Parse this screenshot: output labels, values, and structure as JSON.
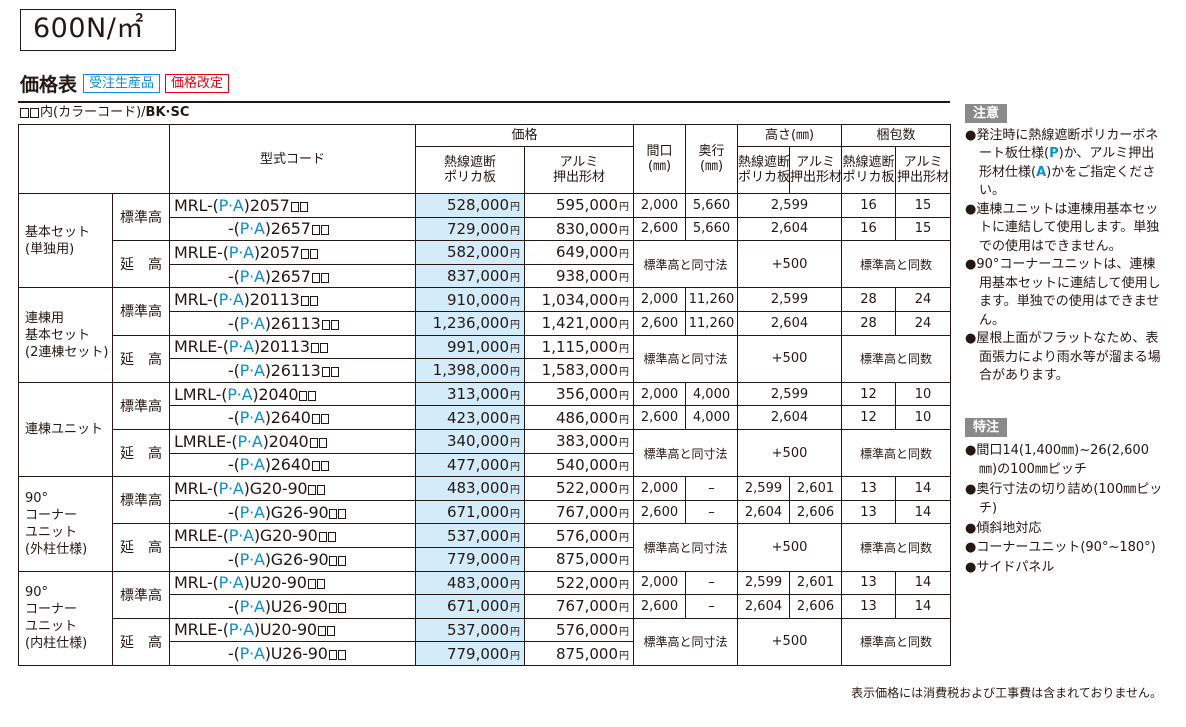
{
  "load": "600N/㎡",
  "title": "価格表",
  "tags": [
    "受注生産品",
    "価格改定"
  ],
  "color_note": {
    "prefix": "内(カラーコード)/",
    "code": "BK·SC"
  },
  "headers": {
    "model": "型式コード",
    "price": "価格",
    "price_poly": "熱線遮断\nポリカ板",
    "price_alumi": "アルミ\n押出形材",
    "width": "間口\n(㎜)",
    "depth": "奥行\n(㎜)",
    "height": "高さ(㎜)",
    "height_poly": "熱線遮断\nポリカ板",
    "height_alumi": "アルミ\n押出形材",
    "pack": "梱包数",
    "pack_poly": "熱線遮断\nポリカ板",
    "pack_alumi": "アルミ\n押出形材"
  },
  "groups": [
    {
      "category": "基本セット\n(単独用)",
      "std_label": "標準高",
      "ext_label": "延　高",
      "rows": [
        {
          "pre": "MRL-(",
          "pa": "P·A",
          "post": ")2057",
          "p1": "528,000",
          "p2": "595,000",
          "w": "2,000",
          "d": "5,660",
          "h1": "2,599",
          "h2": "",
          "k1": "16",
          "k2": "15"
        },
        {
          "pre": "-(",
          "pa": "P·A",
          "post": ")2657",
          "p1": "729,000",
          "p2": "830,000",
          "w": "2,600",
          "d": "5,660",
          "h1": "2,604",
          "h2": "",
          "k1": "16",
          "k2": "15"
        },
        {
          "pre": "MRLE-(",
          "pa": "P·A",
          "post": ")2057",
          "p1": "582,000",
          "p2": "649,000"
        },
        {
          "pre": "-(",
          "pa": "P·A",
          "post": ")2657",
          "p1": "837,000",
          "p2": "938,000"
        }
      ]
    },
    {
      "category": "連棟用\n基本セット\n(2連棟セット)",
      "std_label": "標準高",
      "ext_label": "延　高",
      "rows": [
        {
          "pre": "MRL-(",
          "pa": "P·A",
          "post": ")20113",
          "p1": "910,000",
          "p2": "1,034,000",
          "w": "2,000",
          "d": "11,260",
          "h1": "2,599",
          "h2": "",
          "k1": "28",
          "k2": "24"
        },
        {
          "pre": "-(",
          "pa": "P·A",
          "post": ")26113",
          "p1": "1,236,000",
          "p2": "1,421,000",
          "w": "2,600",
          "d": "11,260",
          "h1": "2,604",
          "h2": "",
          "k1": "28",
          "k2": "24"
        },
        {
          "pre": "MRLE-(",
          "pa": "P·A",
          "post": ")20113",
          "p1": "991,000",
          "p2": "1,115,000"
        },
        {
          "pre": "-(",
          "pa": "P·A",
          "post": ")26113",
          "p1": "1,398,000",
          "p2": "1,583,000"
        }
      ]
    },
    {
      "category": "連棟ユニット",
      "std_label": "標準高",
      "ext_label": "延　高",
      "rows": [
        {
          "pre": "LMRL-(",
          "pa": "P·A",
          "post": ")2040",
          "p1": "313,000",
          "p2": "356,000",
          "w": "2,000",
          "d": "4,000",
          "h1": "2,599",
          "h2": "",
          "k1": "12",
          "k2": "10"
        },
        {
          "pre": "-(",
          "pa": "P·A",
          "post": ")2640",
          "p1": "423,000",
          "p2": "486,000",
          "w": "2,600",
          "d": "4,000",
          "h1": "2,604",
          "h2": "",
          "k1": "12",
          "k2": "10"
        },
        {
          "pre": "LMRLE-(",
          "pa": "P·A",
          "post": ")2040",
          "p1": "340,000",
          "p2": "383,000"
        },
        {
          "pre": "-(",
          "pa": "P·A",
          "post": ")2640",
          "p1": "477,000",
          "p2": "540,000"
        }
      ]
    },
    {
      "category": "90°\nコーナー\nユニット\n(外柱仕様)",
      "std_label": "標準高",
      "ext_label": "延　高",
      "rows": [
        {
          "pre": "MRL-(",
          "pa": "P·A",
          "post": ")G20-90",
          "p1": "483,000",
          "p2": "522,000",
          "w": "2,000",
          "d": "–",
          "h1": "2,599",
          "h2": "2,601",
          "k1": "13",
          "k2": "14"
        },
        {
          "pre": "-(",
          "pa": "P·A",
          "post": ")G26-90",
          "p1": "671,000",
          "p2": "767,000",
          "w": "2,600",
          "d": "–",
          "h1": "2,604",
          "h2": "2,606",
          "k1": "13",
          "k2": "14"
        },
        {
          "pre": "MRLE-(",
          "pa": "P·A",
          "post": ")G20-90",
          "p1": "537,000",
          "p2": "576,000"
        },
        {
          "pre": "-(",
          "pa": "P·A",
          "post": ")G26-90",
          "p1": "779,000",
          "p2": "875,000"
        }
      ]
    },
    {
      "category": "90°\nコーナー\nユニット\n(内柱仕様)",
      "std_label": "標準高",
      "ext_label": "延　高",
      "rows": [
        {
          "pre": "MRL-(",
          "pa": "P·A",
          "post": ")U20-90",
          "p1": "483,000",
          "p2": "522,000",
          "w": "2,000",
          "d": "–",
          "h1": "2,599",
          "h2": "2,601",
          "k1": "13",
          "k2": "14"
        },
        {
          "pre": "-(",
          "pa": "P·A",
          "post": ")U26-90",
          "p1": "671,000",
          "p2": "767,000",
          "w": "2,600",
          "d": "–",
          "h1": "2,604",
          "h2": "2,606",
          "k1": "13",
          "k2": "14"
        },
        {
          "pre": "MRLE-(",
          "pa": "P·A",
          "post": ")U20-90",
          "p1": "537,000",
          "p2": "576,000"
        },
        {
          "pre": "-(",
          "pa": "P·A",
          "post": ")U26-90",
          "p1": "779,000",
          "p2": "875,000"
        }
      ]
    }
  ],
  "ext_same_dim": "標準高と同寸法",
  "ext_height": "+500",
  "ext_same_pack": "標準高と同数",
  "yen": "円",
  "notes_head": "注意",
  "notes": [
    "●発注時に熱線遮断ポリカーボネート板仕様(P)か、アルミ押出形材仕様(A)かをご指定ください。",
    "●連棟ユニットは連棟用基本セットに連結して使用します。単独での使用はできません。",
    "●90°コーナーユニットは、連棟用基本セットに連結して使用します。単独での使用はできません。",
    "●屋根上面がフラットなため、表面張力により雨水等が溜まる場合があります。"
  ],
  "specs_head": "特注",
  "specs": [
    "●間口14(1,400㎜)~26(2,600㎜)の100㎜ピッチ",
    "●奥行寸法の切り詰め(100㎜ピッチ)",
    "●傾斜地対応",
    "●コーナーユニット(90°~180°)",
    "●サイドパネル"
  ],
  "footer": "表示価格には消費税および工事費は含まれておりません。"
}
